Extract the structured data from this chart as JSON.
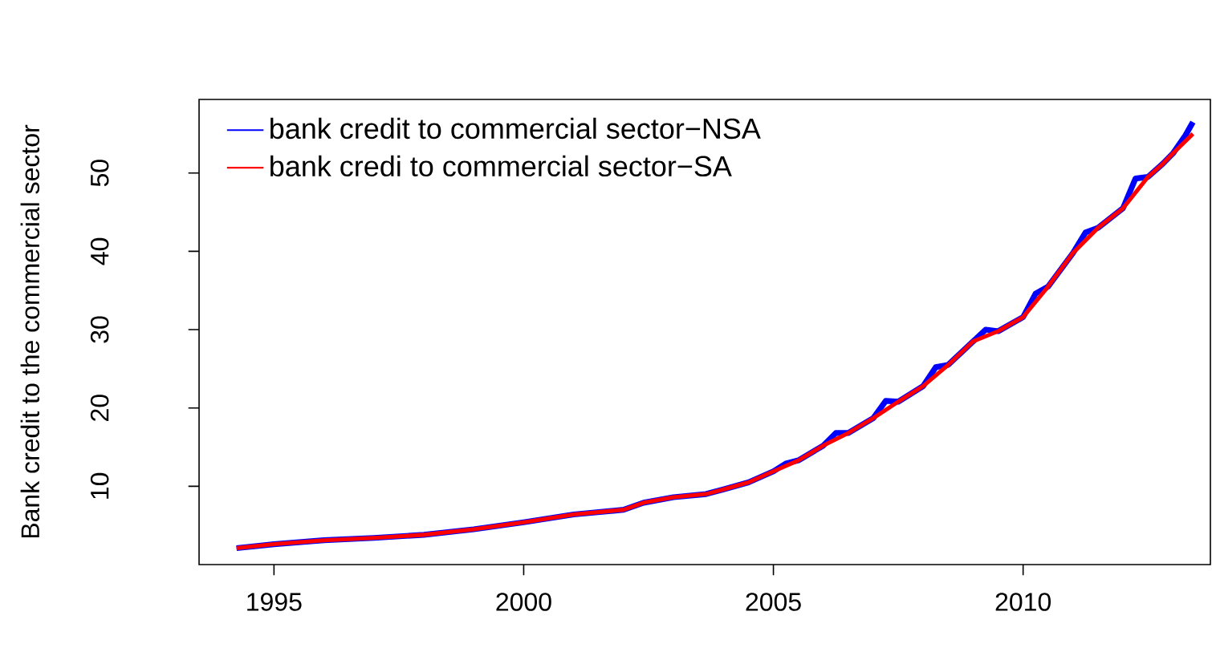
{
  "chart_data": {
    "type": "line",
    "ylabel": "Bank credit to the commercial sector",
    "xlim": [
      1993.5,
      2013.75
    ],
    "ylim": [
      0,
      59.4
    ],
    "xticks": [
      1995,
      2000,
      2005,
      2010
    ],
    "yticks": [
      10,
      20,
      30,
      40,
      50
    ],
    "legend": "top left",
    "grid": false,
    "marker": "none",
    "line_style": "solid",
    "series": [
      {
        "name": "bank credit to commercial sector−NSA",
        "color": "#0000ff",
        "x": [
          1994.25,
          1995,
          1996,
          1997,
          1998,
          1999,
          2000,
          2001,
          2002,
          2002.4,
          2003,
          2003.65,
          2004,
          2004.5,
          2005,
          2005.25,
          2005.5,
          2006,
          2006.25,
          2006.5,
          2007,
          2007.25,
          2007.5,
          2008,
          2008.25,
          2008.5,
          2009,
          2009.25,
          2009.5,
          2010,
          2010.25,
          2010.5,
          2011,
          2011.25,
          2011.5,
          2012,
          2012.25,
          2012.5,
          2012.8,
          2013,
          2013.25,
          2013.4
        ],
        "values": [
          2.1,
          2.6,
          3.1,
          3.4,
          3.8,
          4.5,
          5.4,
          6.4,
          7.0,
          7.9,
          8.6,
          9.0,
          9.6,
          10.5,
          11.9,
          12.9,
          13.3,
          15.2,
          16.8,
          16.8,
          18.7,
          20.9,
          20.8,
          22.8,
          25.2,
          25.5,
          28.5,
          30.0,
          29.8,
          31.6,
          34.6,
          35.5,
          39.8,
          42.4,
          43.0,
          45.5,
          49.3,
          49.5,
          51.2,
          52.5,
          54.8,
          56.5
        ]
      },
      {
        "name": "bank credi to commercial sector−SA",
        "color": "#ff0000",
        "x": [
          1994.25,
          1995,
          1996,
          1997,
          1998,
          1999,
          2000,
          2001,
          2002,
          2002.4,
          2003,
          2003.65,
          2004,
          2004.5,
          2005,
          2005.5,
          2006,
          2006.5,
          2007,
          2007.5,
          2008,
          2008.5,
          2009,
          2009.5,
          2010,
          2010.5,
          2011,
          2011.5,
          2012,
          2012.5,
          2012.8,
          2013,
          2013.4
        ],
        "values": [
          2.1,
          2.6,
          3.1,
          3.4,
          3.8,
          4.5,
          5.4,
          6.4,
          7.0,
          7.9,
          8.6,
          9.0,
          9.6,
          10.5,
          11.9,
          13.3,
          15.2,
          16.8,
          18.7,
          20.8,
          22.8,
          25.5,
          28.5,
          29.8,
          31.6,
          35.5,
          39.8,
          43.0,
          45.5,
          49.5,
          51.2,
          52.5,
          55.0
        ]
      }
    ]
  }
}
